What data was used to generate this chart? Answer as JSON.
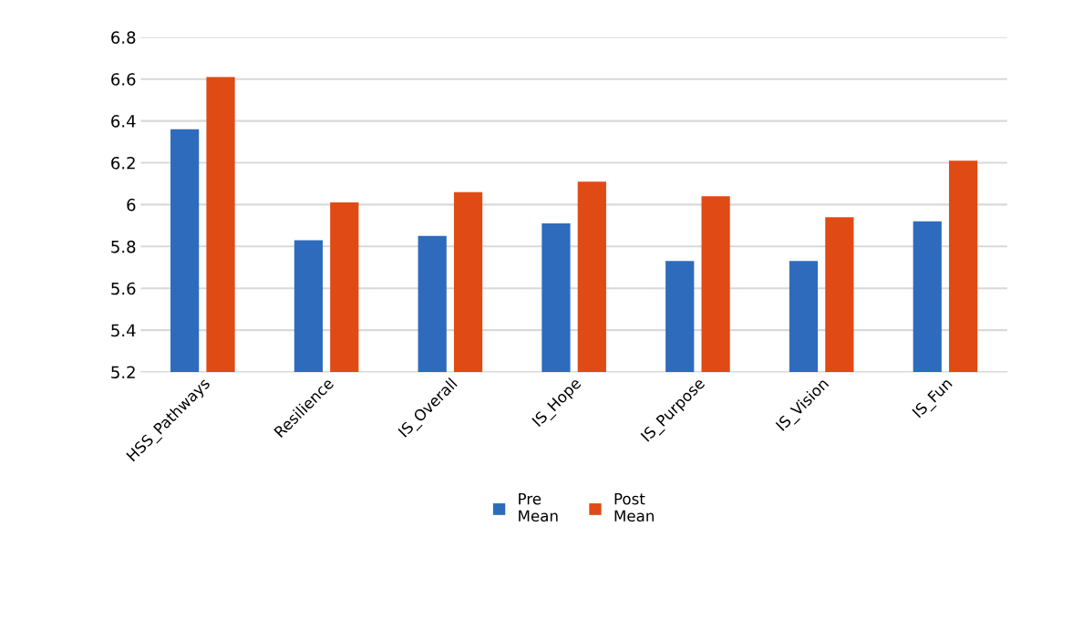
{
  "chart_data": {
    "type": "bar",
    "categories": [
      "HSS_Pathways",
      "Resilience",
      "IS_Overall",
      "IS_Hope",
      "IS_Purpose",
      "IS_Vision",
      "IS_Fun"
    ],
    "series": [
      {
        "name": "Pre\nMean",
        "color": "#2e6bbd",
        "values": [
          6.36,
          5.83,
          5.85,
          5.91,
          5.73,
          5.73,
          5.92
        ]
      },
      {
        "name": "Post\nMean",
        "color": "#e04a14",
        "values": [
          6.61,
          6.01,
          6.06,
          6.11,
          6.04,
          5.94,
          6.21
        ]
      }
    ],
    "ylim": [
      5.2,
      6.8
    ],
    "yticks": [
      5.2,
      5.4,
      5.6,
      5.8,
      6,
      6.2,
      6.4,
      6.6,
      6.8
    ],
    "grid": "y",
    "legend": "bottom"
  }
}
